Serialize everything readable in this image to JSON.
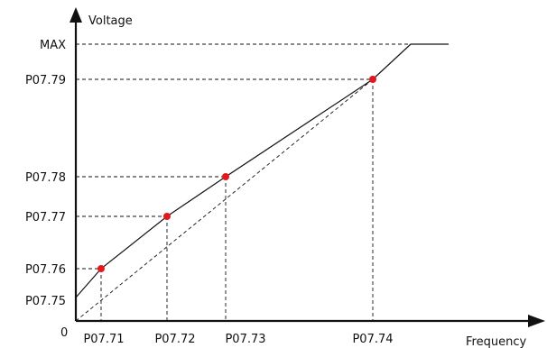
{
  "axes": {
    "y_label": "Voltage",
    "x_label": "Frequency",
    "origin_label": "0"
  },
  "y_ticks": {
    "max": "MAX",
    "p0779": "P07.79",
    "p0778": "P07.78",
    "p0777": "P07.77",
    "p0776": "P07.76",
    "p0775": "P07.75"
  },
  "x_ticks": {
    "p0771": "P07.71",
    "p0772": "P07.72",
    "p0773": "P07.73",
    "p0774": "P07.74"
  },
  "colors": {
    "line": "#111111",
    "point": "#e0191f",
    "guide": "#111111"
  }
}
